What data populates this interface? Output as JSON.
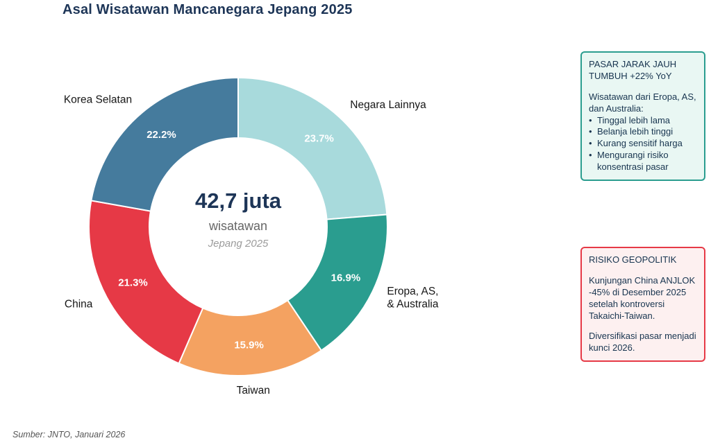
{
  "title": "Asal Wisatawan Mancanegara Jepang 2025",
  "source": "Sumber: JNTO, Januari 2026",
  "colors": {
    "title_text": "#1d3557",
    "center_value_text": "#1d3557"
  },
  "center": {
    "value": "42,7 juta",
    "label": "wisatawan",
    "sublabel": "Jepang 2025"
  },
  "chart_data": {
    "type": "pie",
    "donut": true,
    "title": "Asal Wisatawan Mancanegara Jepang 2025",
    "total_label": "42,7 juta wisatawan, Jepang 2025",
    "start_angle_deg": 0,
    "direction": "clockwise",
    "units": "%",
    "segments": [
      {
        "label": "Negara Lainnya",
        "value": 23.7,
        "pct_label": "23.7%",
        "color": "#a8dadc"
      },
      {
        "label": "Eropa, AS,\n& Australia",
        "value": 16.9,
        "pct_label": "16.9%",
        "color": "#2a9d8f"
      },
      {
        "label": "Taiwan",
        "value": 15.9,
        "pct_label": "15.9%",
        "color": "#f4a261"
      },
      {
        "label": "China",
        "value": 21.3,
        "pct_label": "21.3%",
        "color": "#e63946"
      },
      {
        "label": "Korea Selatan",
        "value": 22.2,
        "pct_label": "22.2%",
        "color": "#457b9d"
      }
    ]
  },
  "annotations": {
    "long_haul": {
      "title": "PASAR JARAK JAUH TUMBUH +22% YoY",
      "intro": "Wisatawan dari Eropa, AS, dan Australia:",
      "bullet_glyph": "•",
      "bullets": [
        "Tinggal lebih lama",
        "Belanja lebih tinggi",
        "Kurang sensitif harga",
        "Mengurangi risiko konsentrasi pasar"
      ],
      "border_color": "#2a9d8f",
      "bg_color": "#e9f7f3"
    },
    "geopolitical": {
      "title": "RISIKO GEOPOLITIK",
      "para1": "Kunjungan China ANJLOK -45% di Desember 2025 setelah kontroversi Takaichi-Taiwan.",
      "para2": "Diversifikasi pasar menjadi kunci 2026.",
      "border_color": "#e63946",
      "bg_color": "#fdf0f0"
    }
  }
}
